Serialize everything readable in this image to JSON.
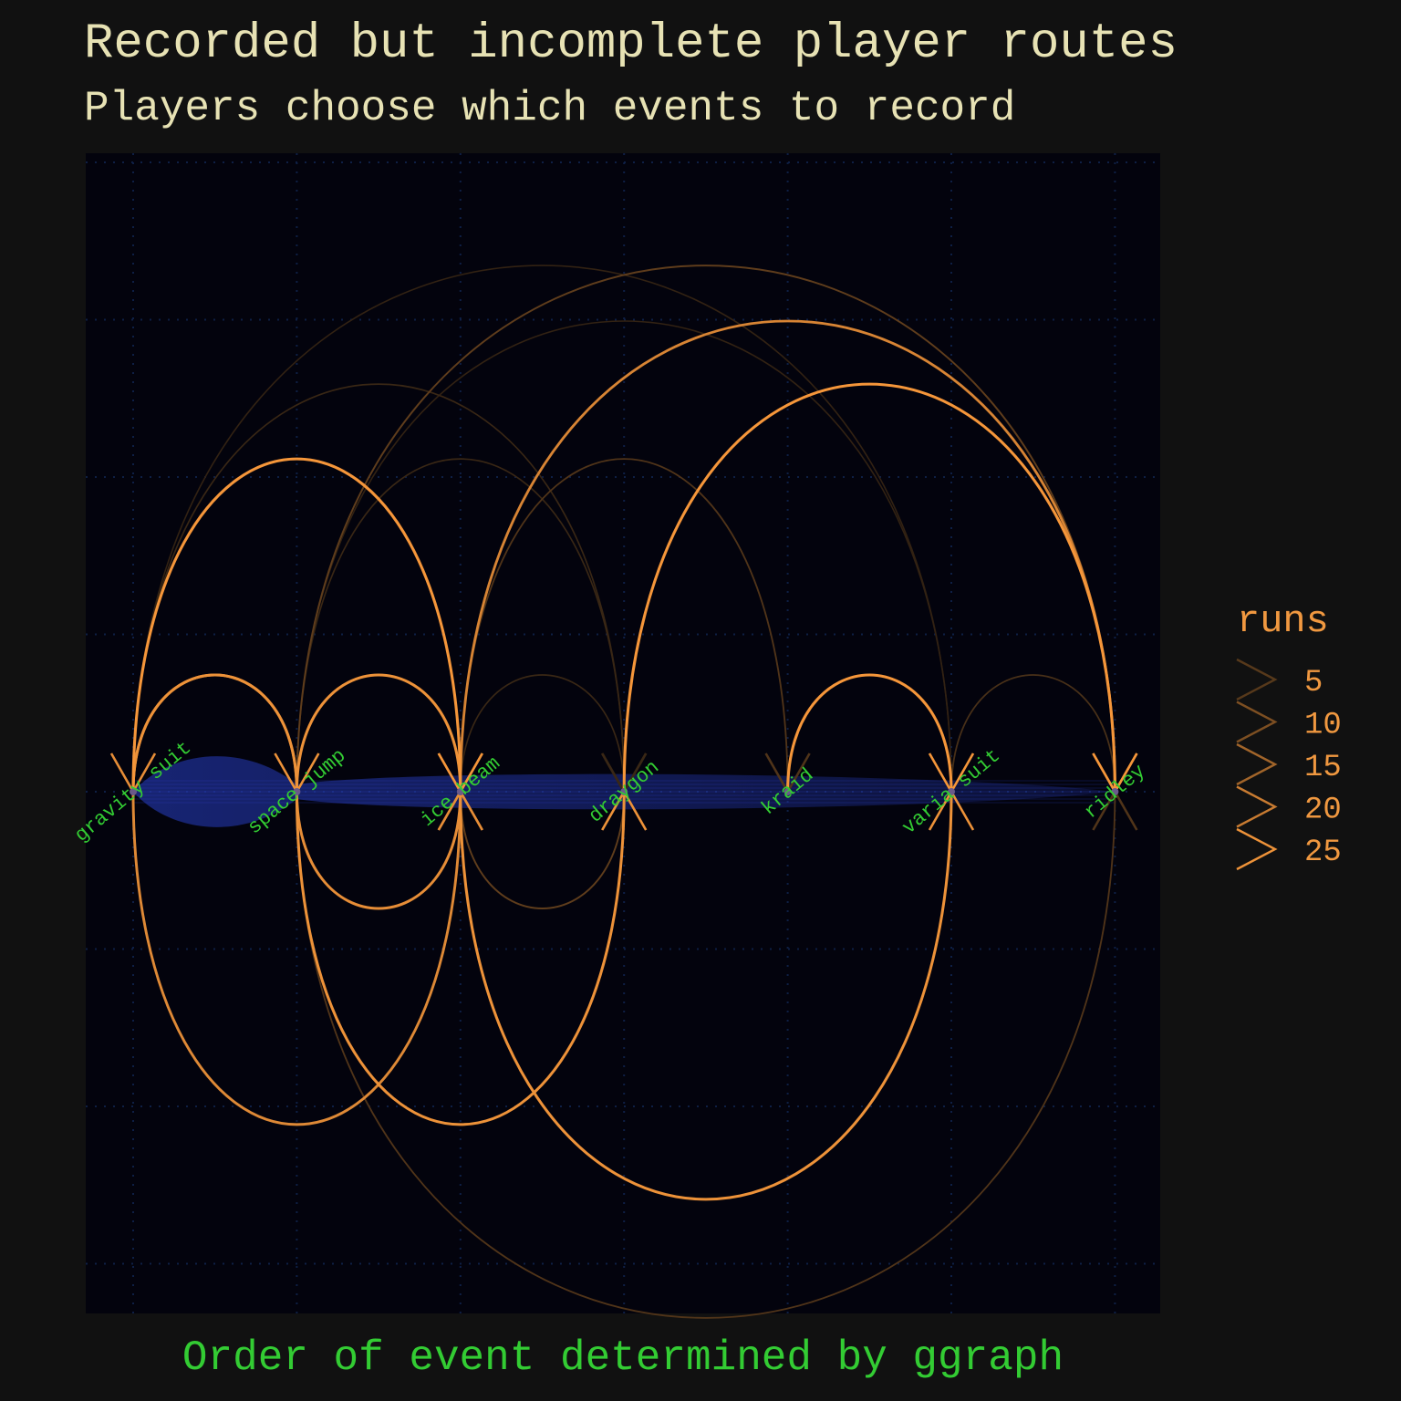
{
  "chart_data": {
    "type": "arc-diagram",
    "title": "Recorded but incomplete player routes",
    "subtitle": "Players choose which events to record",
    "xlabel": "Order of event determined by ggraph",
    "nodes": [
      "gravity suit",
      "space jump",
      "ice beam",
      "draygon",
      "kraid",
      "varia suit",
      "ridley"
    ],
    "edges": [
      {
        "from": "gravity suit",
        "to": "space jump",
        "runs": 27,
        "side": "above"
      },
      {
        "from": "space jump",
        "to": "gravity suit",
        "runs": 26,
        "side": "above"
      },
      {
        "from": "gravity suit",
        "to": "ice beam",
        "runs": 28,
        "side": "above"
      },
      {
        "from": "gravity suit",
        "to": "draygon",
        "runs": 3,
        "side": "above"
      },
      {
        "from": "gravity suit",
        "to": "varia suit",
        "runs": 2,
        "side": "above"
      },
      {
        "from": "gravity suit",
        "to": "ice beam",
        "runs": 25,
        "side": "below"
      },
      {
        "from": "space jump",
        "to": "ice beam",
        "runs": 27,
        "side": "above"
      },
      {
        "from": "space jump",
        "to": "draygon",
        "runs": 3,
        "side": "above"
      },
      {
        "from": "space jump",
        "to": "ridley",
        "runs": 8,
        "side": "above"
      },
      {
        "from": "space jump",
        "to": "varia suit",
        "runs": 2,
        "side": "above"
      },
      {
        "from": "space jump",
        "to": "ice beam",
        "runs": 26,
        "side": "below"
      },
      {
        "from": "space jump",
        "to": "draygon",
        "runs": 27,
        "side": "below"
      },
      {
        "from": "space jump",
        "to": "ridley",
        "runs": 6,
        "side": "below"
      },
      {
        "from": "ice beam",
        "to": "draygon",
        "runs": 3,
        "side": "above"
      },
      {
        "from": "ice beam",
        "to": "kraid",
        "runs": 6,
        "side": "above"
      },
      {
        "from": "ice beam",
        "to": "ridley",
        "runs": 24,
        "side": "above"
      },
      {
        "from": "ice beam",
        "to": "draygon",
        "runs": 8,
        "side": "below"
      },
      {
        "from": "ice beam",
        "to": "varia suit",
        "runs": 27,
        "side": "below"
      },
      {
        "from": "draygon",
        "to": "ridley",
        "runs": 28,
        "side": "above"
      },
      {
        "from": "kraid",
        "to": "varia suit",
        "runs": 28,
        "side": "above"
      },
      {
        "from": "varia suit",
        "to": "ridley",
        "runs": 5,
        "side": "above"
      }
    ],
    "legend": {
      "title": "runs",
      "entries": [
        {
          "label": "5",
          "value": 5
        },
        {
          "label": "10",
          "value": 10
        },
        {
          "label": "15",
          "value": 15
        },
        {
          "label": "20",
          "value": 20
        },
        {
          "label": "25",
          "value": 25
        }
      ],
      "position": "right"
    },
    "colors": {
      "background": "#111111",
      "panel": "#03030d",
      "grid": "#0e1f45",
      "title": "#e7e2b4",
      "node_label": "#33cc33",
      "axis_title": "#33cc33",
      "legend": "#f09840",
      "edge_low": "#2a1e12",
      "edge_high": "#f5963a",
      "node_glow": "#2233aa"
    }
  }
}
